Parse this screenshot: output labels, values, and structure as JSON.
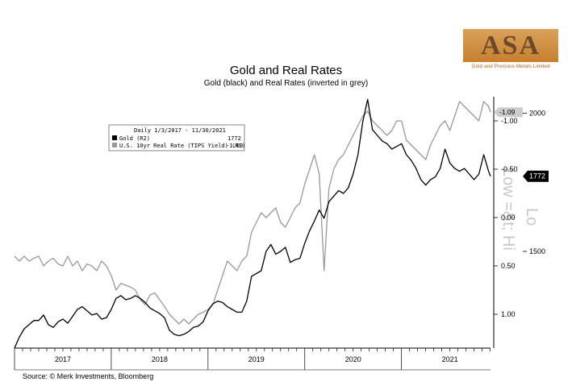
{
  "title": "Gold and Real Rates",
  "subtitle": "Gold (black) and Real Rates (inverted in grey)",
  "source": "Source: © Merk Investments, Bloomberg",
  "logo": {
    "text": "ASA",
    "tagline": "Gold and Precious Metals Limited"
  },
  "legend": {
    "period": "Daily 1/3/2017 - 11/30/2021",
    "items": [
      {
        "label": "Gold (R2)",
        "value": "1772",
        "color": "#000000"
      },
      {
        "label": "U.S. 10yr Real Rate (TIPS Yield) (R1)",
        "value": "-1.09",
        "color": "#999999"
      }
    ]
  },
  "watermarks": {
    "w1": "Low =&t; Hi",
    "w2": "Lo"
  },
  "chart_data": {
    "type": "line",
    "title": "Gold and Real Rates",
    "subtitle": "Gold (black) and Real Rates (inverted in grey)",
    "x_labels": [
      "2017",
      "2018",
      "2019",
      "2020",
      "2021"
    ],
    "x_range": [
      2017.0,
      2021.92
    ],
    "axes": {
      "r1": {
        "series": "U.S. 10yr Real Rate (TIPS Yield) (R1)",
        "inverted": true,
        "range": [
          -1.25,
          1.35
        ],
        "ticks": [
          -1.0,
          -0.5,
          0.0,
          0.5,
          1.0
        ],
        "tick_labels": [
          "-1.00",
          "-0.50",
          "0.00",
          "0.50",
          "1.00"
        ]
      },
      "r2": {
        "series": "Gold (R2)",
        "range": [
          1150,
          2060
        ],
        "ticks": [
          2000,
          1500
        ],
        "tick_labels": [
          "2000",
          "1500"
        ]
      }
    },
    "last_values": {
      "Gold (R2)": "1772",
      "U.S. 10yr Real Rate (TIPS Yield) (R1)": "-1.09"
    },
    "series": [
      {
        "name": "Gold (R2)",
        "axis": "r2",
        "color": "#000000",
        "x": [
          2017.0,
          2017.05,
          2017.1,
          2017.15,
          2017.2,
          2017.25,
          2017.3,
          2017.35,
          2017.4,
          2017.45,
          2017.5,
          2017.55,
          2017.6,
          2017.65,
          2017.7,
          2017.75,
          2017.8,
          2017.85,
          2017.9,
          2017.95,
          2018.0,
          2018.05,
          2018.1,
          2018.15,
          2018.2,
          2018.25,
          2018.3,
          2018.35,
          2018.4,
          2018.45,
          2018.5,
          2018.55,
          2018.6,
          2018.65,
          2018.7,
          2018.75,
          2018.8,
          2018.85,
          2018.9,
          2018.95,
          2019.0,
          2019.05,
          2019.1,
          2019.15,
          2019.2,
          2019.25,
          2019.3,
          2019.35,
          2019.4,
          2019.45,
          2019.5,
          2019.55,
          2019.6,
          2019.65,
          2019.7,
          2019.75,
          2019.8,
          2019.85,
          2019.9,
          2019.95,
          2020.0,
          2020.05,
          2020.1,
          2020.15,
          2020.2,
          2020.25,
          2020.3,
          2020.35,
          2020.4,
          2020.45,
          2020.5,
          2020.55,
          2020.6,
          2020.65,
          2020.7,
          2020.75,
          2020.8,
          2020.85,
          2020.9,
          2020.95,
          2021.0,
          2021.05,
          2021.1,
          2021.15,
          2021.2,
          2021.25,
          2021.3,
          2021.35,
          2021.4,
          2021.45,
          2021.5,
          2021.55,
          2021.6,
          2021.65,
          2021.7,
          2021.75,
          2021.8,
          2021.85,
          2021.9,
          2021.92
        ],
        "values": [
          1150,
          1190,
          1220,
          1235,
          1250,
          1250,
          1270,
          1235,
          1225,
          1245,
          1255,
          1240,
          1265,
          1290,
          1300,
          1285,
          1270,
          1275,
          1255,
          1260,
          1290,
          1330,
          1340,
          1325,
          1330,
          1340,
          1330,
          1315,
          1295,
          1285,
          1275,
          1260,
          1215,
          1200,
          1195,
          1200,
          1210,
          1225,
          1230,
          1245,
          1285,
          1310,
          1320,
          1315,
          1300,
          1290,
          1280,
          1280,
          1320,
          1410,
          1420,
          1430,
          1500,
          1525,
          1490,
          1500,
          1515,
          1460,
          1470,
          1475,
          1530,
          1575,
          1610,
          1650,
          1620,
          1680,
          1700,
          1720,
          1710,
          1730,
          1780,
          1850,
          1970,
          2050,
          1940,
          1920,
          1900,
          1890,
          1870,
          1880,
          1890,
          1850,
          1830,
          1800,
          1760,
          1740,
          1760,
          1770,
          1800,
          1870,
          1820,
          1800,
          1790,
          1800,
          1780,
          1760,
          1780,
          1850,
          1790,
          1772
        ]
      },
      {
        "name": "U.S. 10yr Real Rate (TIPS Yield) (R1)",
        "axis": "r1",
        "color": "#999999",
        "x": [
          2017.0,
          2017.05,
          2017.1,
          2017.15,
          2017.2,
          2017.25,
          2017.3,
          2017.35,
          2017.4,
          2017.45,
          2017.5,
          2017.55,
          2017.6,
          2017.65,
          2017.7,
          2017.75,
          2017.8,
          2017.85,
          2017.9,
          2017.95,
          2018.0,
          2018.05,
          2018.1,
          2018.15,
          2018.2,
          2018.25,
          2018.3,
          2018.35,
          2018.4,
          2018.45,
          2018.5,
          2018.55,
          2018.6,
          2018.65,
          2018.7,
          2018.75,
          2018.8,
          2018.85,
          2018.9,
          2018.95,
          2019.0,
          2019.05,
          2019.1,
          2019.15,
          2019.2,
          2019.25,
          2019.3,
          2019.35,
          2019.4,
          2019.45,
          2019.5,
          2019.55,
          2019.6,
          2019.65,
          2019.7,
          2019.75,
          2019.8,
          2019.85,
          2019.9,
          2019.95,
          2020.0,
          2020.05,
          2020.1,
          2020.15,
          2020.2,
          2020.25,
          2020.3,
          2020.35,
          2020.4,
          2020.45,
          2020.5,
          2020.55,
          2020.6,
          2020.65,
          2020.7,
          2020.75,
          2020.8,
          2020.85,
          2020.9,
          2020.95,
          2021.0,
          2021.05,
          2021.1,
          2021.15,
          2021.2,
          2021.25,
          2021.3,
          2021.35,
          2021.4,
          2021.45,
          2021.5,
          2021.55,
          2021.6,
          2021.65,
          2021.7,
          2021.75,
          2021.8,
          2021.85,
          2021.9,
          2021.92
        ],
        "values": [
          0.4,
          0.45,
          0.4,
          0.45,
          0.42,
          0.4,
          0.5,
          0.45,
          0.42,
          0.48,
          0.5,
          0.4,
          0.5,
          0.45,
          0.55,
          0.48,
          0.5,
          0.55,
          0.45,
          0.5,
          0.6,
          0.75,
          0.68,
          0.7,
          0.72,
          0.75,
          0.85,
          0.9,
          0.8,
          0.78,
          0.85,
          0.92,
          1.0,
          1.05,
          1.1,
          1.05,
          1.1,
          1.05,
          1.0,
          0.98,
          0.95,
          0.9,
          0.75,
          0.6,
          0.45,
          0.5,
          0.55,
          0.45,
          0.4,
          0.15,
          0.05,
          -0.05,
          0.0,
          -0.05,
          -0.1,
          0.05,
          0.1,
          0.0,
          -0.1,
          -0.15,
          -0.35,
          -0.5,
          -0.65,
          -0.45,
          0.55,
          -0.3,
          -0.5,
          -0.6,
          -0.65,
          -0.75,
          -0.85,
          -0.95,
          -1.05,
          -1.1,
          -1.0,
          -0.95,
          -0.9,
          -0.85,
          -0.9,
          -1.0,
          -1.0,
          -0.8,
          -0.75,
          -0.7,
          -0.65,
          -0.6,
          -0.75,
          -0.85,
          -0.95,
          -1.0,
          -0.9,
          -1.05,
          -1.2,
          -1.15,
          -1.1,
          -1.05,
          -1.0,
          -1.2,
          -1.15,
          -1.09
        ]
      }
    ]
  }
}
